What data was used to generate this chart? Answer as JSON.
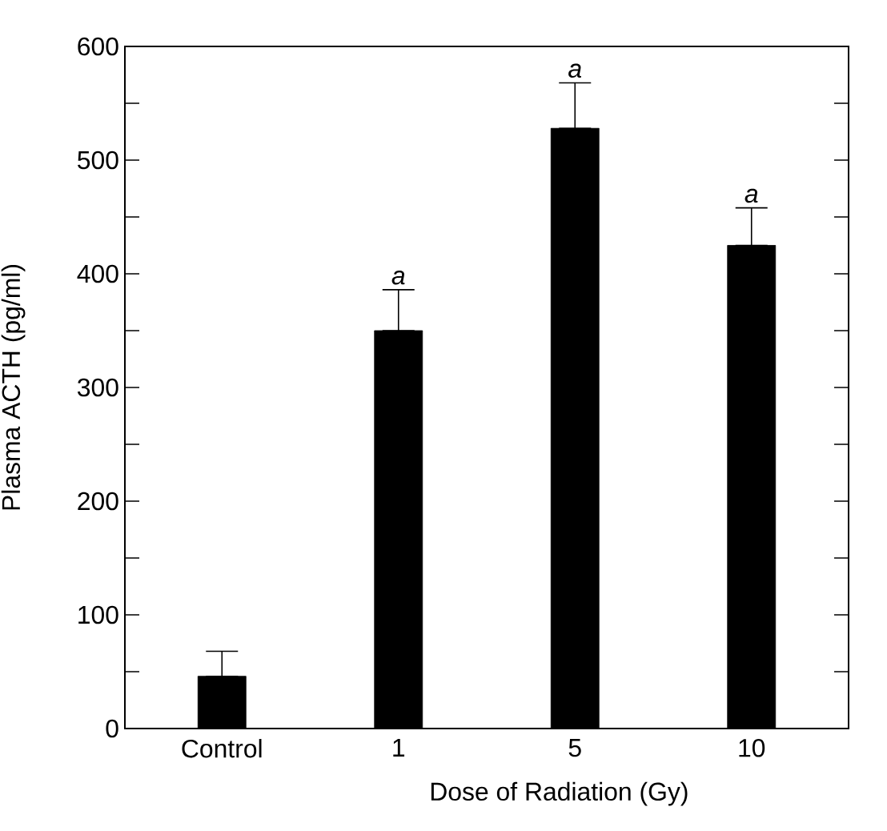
{
  "chart_data": {
    "type": "bar",
    "xlabel": "Dose of Radiation (Gy)",
    "ylabel": "Plasma ACTH (pg/ml)",
    "categories": [
      "Control",
      "1",
      "5",
      "10"
    ],
    "values": [
      46,
      350,
      528,
      425
    ],
    "errors": [
      [
        46,
        68
      ],
      [
        350,
        386
      ],
      [
        528,
        568
      ],
      [
        425,
        458
      ]
    ],
    "color": "#000000",
    "ylim": [
      0,
      600
    ],
    "yticks": [
      0,
      {
        "value": 50,
        "label": null
      },
      100,
      {
        "value": 150,
        "label": null
      },
      200,
      {
        "value": 250,
        "label": null
      },
      300,
      {
        "value": 350,
        "label": null
      },
      400,
      {
        "value": 450,
        "label": null
      },
      500,
      {
        "value": 550,
        "label": null
      },
      600
    ],
    "annotations": [
      {
        "text": "a",
        "x": "1",
        "y": 386
      },
      {
        "text": "a",
        "x": "5",
        "y": 568
      },
      {
        "text": "a",
        "x": "10",
        "y": 458
      }
    ],
    "grid": false
  }
}
